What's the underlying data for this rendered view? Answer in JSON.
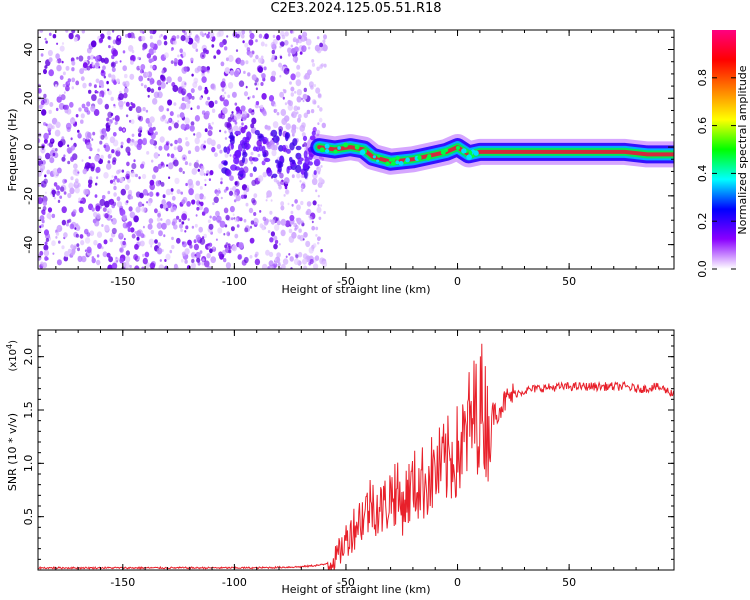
{
  "title": "C2E3.2024.125.05.51.R18",
  "colors": {
    "snr_line": "#e8202a",
    "signal_core": "#d42a3c",
    "noise": "#6a00e8"
  },
  "chart_data": [
    {
      "type": "heatmap",
      "xlabel": "Height of straight line (km)",
      "ylabel": "Frequency (Hz)",
      "xlim": [
        -188,
        97
      ],
      "ylim": [
        -50,
        48
      ],
      "xticks": [
        -150,
        -100,
        -50,
        0,
        50
      ],
      "xtick_labels": [
        "-150",
        "-100",
        "-50",
        "0",
        "50"
      ],
      "yticks": [
        -40,
        -20,
        0,
        20,
        40
      ],
      "ytick_labels": [
        "-40",
        "-20",
        "0",
        "20",
        "40"
      ],
      "colorbar": {
        "label": "Normalized spectral amplitude",
        "range": [
          0,
          1
        ],
        "ticks": [
          0.0,
          0.2,
          0.4,
          0.6,
          0.8
        ],
        "tick_labels": [
          "0.0",
          "0.2",
          "0.4",
          "0.6",
          "0.8"
        ],
        "colors": [
          "#ffffff",
          "#8a00ff",
          "#0000ff",
          "#00ffff",
          "#00ff00",
          "#ffff00",
          "#ff8000",
          "#ff0000",
          "#ff0080"
        ]
      },
      "noise_region_km": [
        -188,
        -62
      ],
      "signal_track": [
        {
          "x": -62,
          "y": 0
        },
        {
          "x": -55,
          "y": -1
        },
        {
          "x": -48,
          "y": 0
        },
        {
          "x": -42,
          "y": -1
        },
        {
          "x": -38,
          "y": -4
        },
        {
          "x": -30,
          "y": -6
        },
        {
          "x": -20,
          "y": -5
        },
        {
          "x": -10,
          "y": -3
        },
        {
          "x": -5,
          "y": -2
        },
        {
          "x": 0,
          "y": 0
        },
        {
          "x": 5,
          "y": -3
        },
        {
          "x": 10,
          "y": -2
        },
        {
          "x": 20,
          "y": -2
        },
        {
          "x": 40,
          "y": -2
        },
        {
          "x": 60,
          "y": -2
        },
        {
          "x": 75,
          "y": -2
        },
        {
          "x": 85,
          "y": -3
        },
        {
          "x": 97,
          "y": -3
        }
      ]
    },
    {
      "type": "line",
      "xlabel": "Height of straight line (km)",
      "ylabel": "SNR (10 * v/v)",
      "yscale_label": "(x10",
      "yscale_exp": "4",
      "yscale_close": ")",
      "xlim": [
        -188,
        97
      ],
      "ylim": [
        0,
        2.25
      ],
      "xticks": [
        -150,
        -100,
        -50,
        0,
        50
      ],
      "xtick_labels": [
        "-150",
        "-100",
        "-50",
        "0",
        "50"
      ],
      "yticks": [
        0.5,
        1.0,
        1.5,
        2.0
      ],
      "ytick_labels": [
        "0.5",
        "1.0",
        "1.5",
        "2.0"
      ],
      "series": [
        {
          "x": [
            -188,
            -170,
            -150,
            -130,
            -110,
            -90,
            -70,
            -60,
            -55,
            -52,
            -50,
            -48,
            -45,
            -42,
            -40,
            -38,
            -35,
            -32,
            -30,
            -28,
            -25,
            -22,
            -20,
            -18,
            -15,
            -12,
            -10,
            -8,
            -5,
            -3,
            0,
            2,
            4,
            5,
            7,
            9,
            11,
            12,
            13,
            15,
            18,
            20,
            22,
            25,
            30,
            35,
            40,
            50,
            60,
            70,
            75,
            80,
            85,
            88,
            90,
            92,
            94,
            97
          ],
          "y": [
            0.02,
            0.02,
            0.02,
            0.02,
            0.02,
            0.02,
            0.03,
            0.05,
            0.1,
            0.2,
            0.28,
            0.35,
            0.45,
            0.52,
            0.58,
            0.65,
            0.55,
            0.62,
            0.7,
            0.75,
            0.6,
            0.72,
            0.78,
            0.8,
            0.82,
            0.88,
            0.92,
            0.95,
            1.0,
            1.05,
            1.1,
            1.15,
            1.25,
            1.35,
            1.42,
            1.5,
            1.55,
            1.5,
            1.35,
            1.45,
            1.5,
            1.55,
            1.6,
            1.65,
            1.68,
            1.7,
            1.71,
            1.72,
            1.72,
            1.72,
            1.72,
            1.7,
            1.7,
            1.72,
            1.71,
            1.7,
            1.68,
            1.65
          ]
        }
      ]
    }
  ]
}
